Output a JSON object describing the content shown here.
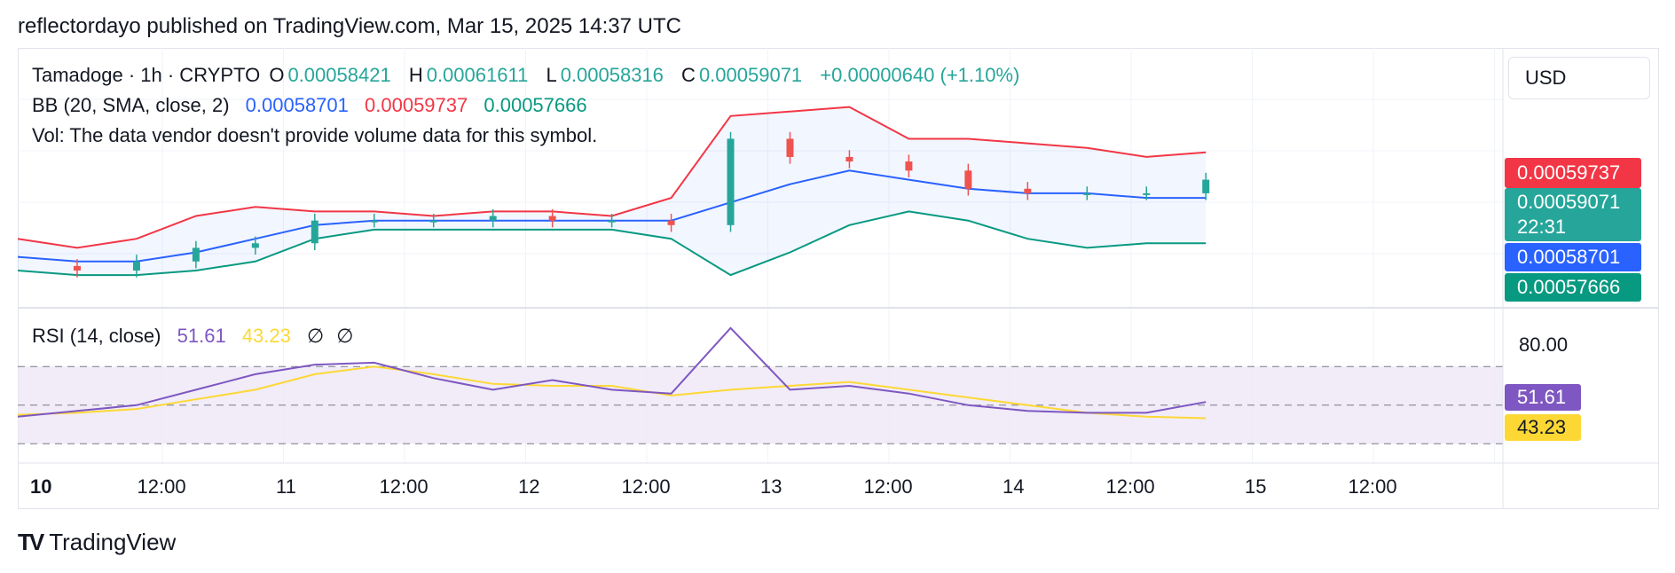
{
  "header": {
    "publish_line": "reflectordayo published on TradingView.com, Mar 15, 2025 14:37 UTC"
  },
  "legend": {
    "symbol_line": "Tamadoge · 1h · CRYPTO",
    "o_label": "O",
    "o_value": "0.00058421",
    "h_label": "H",
    "h_value": "0.00061611",
    "l_label": "L",
    "l_value": "0.00058316",
    "c_label": "C",
    "c_value": "0.00059071",
    "change": "+0.00000640 (+1.10%)",
    "bb_label": "BB (20, SMA, close, 2)",
    "bb_basis": "0.00058701",
    "bb_upper": "0.00059737",
    "bb_lower": "0.00057666",
    "vol_text": "Vol: The data vendor doesn't provide volume data for this symbol.",
    "rsi_label": "RSI (14, close)",
    "rsi_value": "51.61",
    "rsi_ma_value": "43.23",
    "rsi_extra_1": "∅",
    "rsi_extra_2": "∅"
  },
  "currency": "USD",
  "price_tags": {
    "upper": "0.00059737",
    "last": "0.00059071",
    "countdown": "22:31",
    "basis": "0.00058701",
    "lower": "0.00057666",
    "rsi": "51.61",
    "rsi_ma": "43.23",
    "rsi_level": "80.00"
  },
  "time_axis": [
    "10",
    "12:00",
    "11",
    "12:00",
    "12",
    "12:00",
    "13",
    "12:00",
    "14",
    "12:00",
    "15",
    "12:00"
  ],
  "footer": {
    "brand": "TradingView",
    "logo_glyph": "TV"
  },
  "colors": {
    "up": "#26a69a",
    "down": "#ef5350",
    "bb_basis": "#2962ff",
    "bb_upper": "#f23645",
    "bb_lower": "#089981",
    "rsi_line": "#7e57c2",
    "rsi_ma": "#fdd835",
    "rsi_band": "#ede7f6"
  },
  "chart_data": [
    {
      "type": "line",
      "title": "Tamadoge · 1h · CRYPTO",
      "x": [
        0,
        6,
        12,
        18,
        24,
        30,
        36,
        42,
        48,
        54,
        60,
        66,
        72,
        78,
        84,
        90,
        96,
        102,
        108,
        114,
        120
      ],
      "series": [
        {
          "name": "BB upper",
          "values": [
            0.000578,
            0.000576,
            0.000578,
            0.000583,
            0.000585,
            0.000584,
            0.000584,
            0.000583,
            0.000584,
            0.000584,
            0.000583,
            0.000587,
            0.000605,
            0.000606,
            0.000607,
            0.0006,
            0.0006,
            0.000599,
            0.000598,
            0.000596,
            0.000597
          ]
        },
        {
          "name": "BB basis",
          "values": [
            0.000574,
            0.000573,
            0.000573,
            0.000575,
            0.000578,
            0.000581,
            0.000582,
            0.000582,
            0.000582,
            0.000582,
            0.000582,
            0.000582,
            0.000586,
            0.00059,
            0.000593,
            0.000591,
            0.000589,
            0.000588,
            0.000588,
            0.000587,
            0.000587
          ]
        },
        {
          "name": "BB lower",
          "values": [
            0.000571,
            0.00057,
            0.00057,
            0.000571,
            0.000573,
            0.000578,
            0.00058,
            0.00058,
            0.00058,
            0.00058,
            0.00058,
            0.000578,
            0.00057,
            0.000575,
            0.000581,
            0.000584,
            0.000582,
            0.000578,
            0.000576,
            0.000577,
            0.000577
          ]
        }
      ],
      "candles_close": [
        0.000572,
        0.000571,
        0.000573,
        0.000576,
        0.000577,
        0.000582,
        0.000582,
        0.000582,
        0.000583,
        0.000582,
        0.000582,
        0.000581,
        0.0006,
        0.000596,
        0.000595,
        0.000593,
        0.000589,
        0.000588,
        0.000588,
        0.000588,
        0.000591
      ]
    },
    {
      "type": "line",
      "title": "RSI (14, close)",
      "x": [
        0,
        6,
        12,
        18,
        24,
        30,
        36,
        42,
        48,
        54,
        60,
        66,
        72,
        78,
        84,
        90,
        96,
        102,
        108,
        114,
        120
      ],
      "series": [
        {
          "name": "RSI",
          "values": [
            44,
            47,
            50,
            58,
            66,
            71,
            72,
            64,
            58,
            63,
            58,
            56,
            90,
            58,
            60,
            56,
            50,
            47,
            46,
            46,
            51.61
          ]
        },
        {
          "name": "RSI MA",
          "values": [
            45,
            46,
            48,
            53,
            58,
            66,
            70,
            66,
            61,
            60,
            60,
            55,
            58,
            60,
            62,
            58,
            54,
            50,
            46,
            44,
            43.23
          ]
        }
      ],
      "bands": [
        30,
        50,
        70
      ],
      "ylim": [
        20,
        100
      ]
    }
  ]
}
